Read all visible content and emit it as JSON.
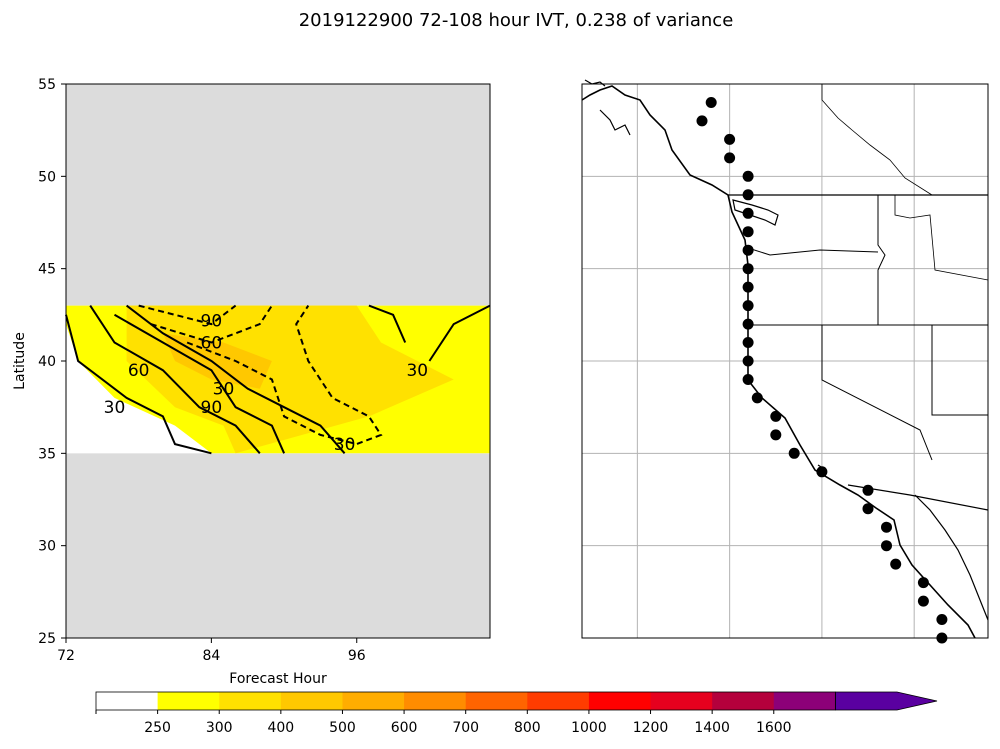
{
  "title": "2019122900 72-108 hour IVT, 0.238 of variance",
  "chart_data": [
    {
      "type": "contour",
      "panel": "hovmoller",
      "xlabel": "Forecast Hour",
      "ylabel": "Latitude",
      "xlim": [
        72,
        107
      ],
      "ylim": [
        25,
        55
      ],
      "xticks": [
        "72",
        "84",
        "96"
      ],
      "yticks": [
        "25",
        "30",
        "35",
        "40",
        "45",
        "50",
        "55"
      ],
      "data_lat_range": [
        35,
        43
      ],
      "missing_color": "#dcdcdc",
      "filled_levels": [
        {
          "level": 250,
          "color": "#ffff00",
          "regions": [
            [
              [
                72,
                43
              ],
              [
                107,
                43
              ],
              [
                107,
                35
              ],
              [
                84,
                35
              ],
              [
                81,
                36.5
              ],
              [
                76,
                38
              ],
              [
                73,
                40
              ],
              [
                72,
                42
              ]
            ]
          ]
        },
        {
          "level": 300,
          "color": "#ffe100",
          "regions": [
            [
              [
                77,
                43
              ],
              [
                96,
                43
              ],
              [
                98,
                41
              ],
              [
                104,
                39
              ],
              [
                97,
                37
              ],
              [
                86,
                35
              ],
              [
                85,
                36.5
              ],
              [
                81,
                37.5
              ],
              [
                77,
                40
              ]
            ]
          ]
        },
        {
          "level": 400,
          "color": "#ffc800",
          "regions": [
            [
              [
                80,
                41.5
              ],
              [
                85,
                41
              ],
              [
                89,
                40
              ],
              [
                88,
                38.5
              ],
              [
                84,
                39
              ],
              [
                81,
                40
              ]
            ]
          ]
        }
      ],
      "contours": [
        {
          "level": 30,
          "style": "solid",
          "points": [
            [
              72,
              42.5
            ],
            [
              73,
              40
            ],
            [
              77,
              38
            ],
            [
              80,
              37
            ],
            [
              81,
              35.5
            ],
            [
              84,
              35
            ]
          ]
        },
        {
          "level": 60,
          "style": "solid",
          "points": [
            [
              74,
              43
            ],
            [
              76,
              41
            ],
            [
              80,
              39.5
            ],
            [
              83,
              37.5
            ],
            [
              86,
              36.5
            ],
            [
              88,
              35
            ]
          ]
        },
        {
          "level": 90,
          "style": "solid",
          "points": [
            [
              76,
              42.5
            ],
            [
              80,
              41
            ],
            [
              84,
              39.5
            ],
            [
              86,
              37.5
            ],
            [
              89,
              36.5
            ],
            [
              90,
              35
            ]
          ]
        },
        {
          "level": 30,
          "style": "solid",
          "points": [
            [
              95,
              35
            ],
            [
              93,
              36.5
            ],
            [
              90,
              37.5
            ],
            [
              87,
              38.5
            ],
            [
              84,
              40
            ],
            [
              80,
              41.5
            ],
            [
              77,
              43
            ]
          ]
        },
        {
          "level": 30,
          "style": "solid",
          "points": [
            [
              102,
              40
            ],
            [
              104,
              42
            ],
            [
              107,
              43
            ]
          ]
        },
        {
          "level": 30,
          "style": "solid",
          "points": [
            [
              100,
              41
            ],
            [
              99,
              42.5
            ],
            [
              97,
              43
            ]
          ]
        },
        {
          "level": 90,
          "style": "dashed",
          "points": [
            [
              78,
              43
            ],
            [
              84,
              42
            ],
            [
              86,
              43
            ]
          ]
        },
        {
          "level": 60,
          "style": "dashed",
          "points": [
            [
              79,
              42
            ],
            [
              84,
              41
            ],
            [
              88,
              42
            ],
            [
              89,
              43
            ]
          ]
        },
        {
          "level": 30,
          "style": "dashed",
          "points": [
            [
              82,
              41
            ],
            [
              86,
              40
            ],
            [
              89,
              39
            ],
            [
              90,
              37
            ],
            [
              93,
              36
            ],
            [
              96,
              35.5
            ],
            [
              98,
              36
            ],
            [
              97,
              37
            ],
            [
              94,
              38
            ],
            [
              92,
              40
            ],
            [
              91,
              42
            ],
            [
              92,
              43
            ]
          ]
        }
      ],
      "contour_labels": [
        {
          "text": "90",
          "x": 84,
          "y": 42.2
        },
        {
          "text": "60",
          "x": 84,
          "y": 41.0
        },
        {
          "text": "60",
          "x": 78,
          "y": 39.5
        },
        {
          "text": "30",
          "x": 85,
          "y": 38.5
        },
        {
          "text": "30",
          "x": 76,
          "y": 37.5
        },
        {
          "text": "90",
          "x": 84,
          "y": 37.5
        },
        {
          "text": "30",
          "x": 101,
          "y": 39.5
        },
        {
          "text": "30",
          "x": 95,
          "y": 35.5
        }
      ]
    },
    {
      "type": "map",
      "panel": "map",
      "region": "West coast of North America",
      "lon_range": [
        -133,
        -111
      ],
      "lat_range": [
        25,
        55
      ],
      "gridlines": true,
      "points": [
        [
          -126,
          54
        ],
        [
          -126.5,
          53
        ],
        [
          -125,
          52
        ],
        [
          -125,
          51
        ],
        [
          -124,
          50
        ],
        [
          -124,
          49
        ],
        [
          -124,
          48
        ],
        [
          -124,
          47
        ],
        [
          -124,
          46
        ],
        [
          -124,
          45
        ],
        [
          -124,
          44
        ],
        [
          -124,
          43
        ],
        [
          -124,
          42
        ],
        [
          -124,
          41
        ],
        [
          -124,
          40
        ],
        [
          -124,
          39
        ],
        [
          -123.5,
          38
        ],
        [
          -122.5,
          37
        ],
        [
          -122.5,
          36
        ],
        [
          -121.5,
          35
        ],
        [
          -120,
          34
        ],
        [
          -117.5,
          33
        ],
        [
          -117.5,
          32
        ],
        [
          -116.5,
          31
        ],
        [
          -116.5,
          30
        ],
        [
          -116,
          29
        ],
        [
          -114.5,
          28
        ],
        [
          -114.5,
          27
        ],
        [
          -113.5,
          26
        ],
        [
          -113.5,
          25
        ]
      ]
    }
  ],
  "colorbar": {
    "levels": [
      "250",
      "300",
      "400",
      "500",
      "600",
      "700",
      "800",
      "1000",
      "1200",
      "1400",
      "1600"
    ],
    "colors": [
      "#ffffff",
      "#ffff00",
      "#ffe100",
      "#ffc800",
      "#ffad00",
      "#ff8c00",
      "#ff6400",
      "#ff3c00",
      "#ff0000",
      "#e6001e",
      "#b4003c",
      "#8c0078",
      "#5a00a0"
    ],
    "extend": "max"
  }
}
